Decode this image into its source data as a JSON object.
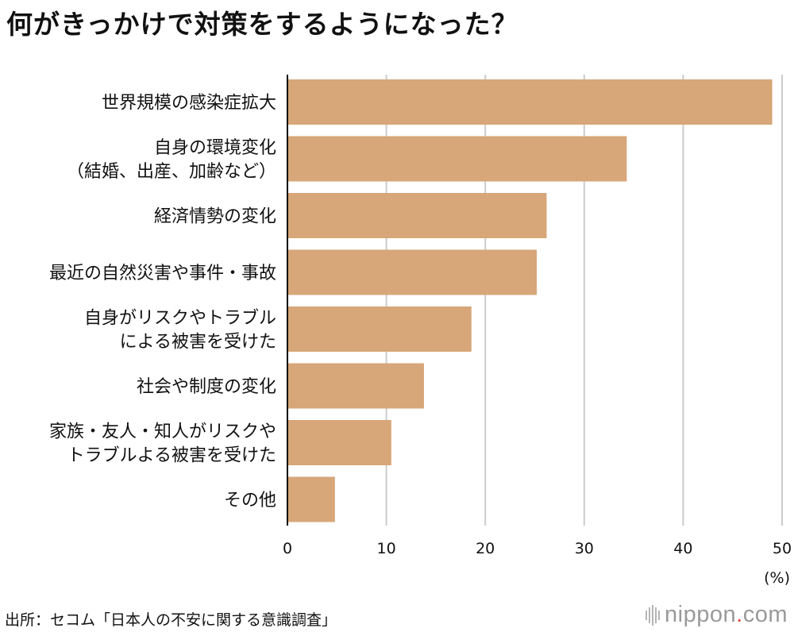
{
  "title": "何がきっかけで対策をするようになった？",
  "source": "出所：セコム「日本人の不安に関する意識調査」",
  "logo": {
    "text_main": "nippon",
    "text_dot": ".",
    "text_tail": "com",
    "dot_color": "#e8463c"
  },
  "colors": {
    "bar": "#d7a679",
    "grid": "#cccccc",
    "axis": "#111111"
  },
  "chart_data": {
    "type": "bar",
    "orientation": "horizontal",
    "title": "何がきっかけで対策をするようになった？",
    "unit": "(%)",
    "xlim": [
      0,
      50
    ],
    "xticks": [
      0,
      10,
      20,
      30,
      40,
      50
    ],
    "grid": true,
    "categories": [
      [
        "世界規模の感染症拡大"
      ],
      [
        "自身の環境変化",
        "（結婚、出産、加齢など）"
      ],
      [
        "経済情勢の変化"
      ],
      [
        "最近の自然災害や事件・事故"
      ],
      [
        "自身がリスクやトラブル",
        "による被害を受けた"
      ],
      [
        "社会や制度の変化"
      ],
      [
        "家族・友人・知人がリスクや",
        "トラブルよる被害を受けた"
      ],
      [
        "その他"
      ]
    ],
    "values": [
      49.0,
      34.3,
      26.2,
      25.2,
      18.6,
      13.8,
      10.5,
      4.8
    ]
  }
}
